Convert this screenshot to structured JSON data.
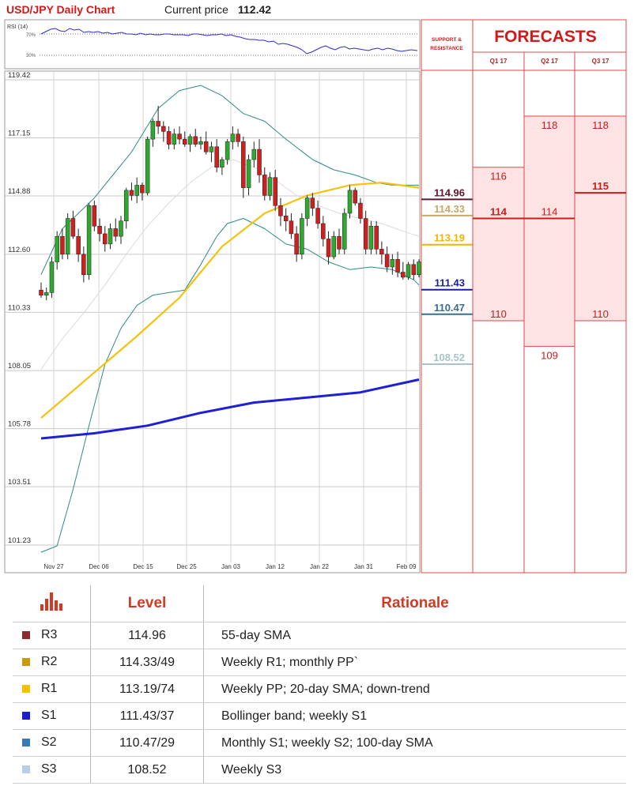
{
  "header": {
    "title": "USD/JPY Daily Chart",
    "current_price_label": "Current price",
    "current_price_value": "112.42"
  },
  "rsi": {
    "label": "RSI (14)",
    "upper": "70%",
    "lower": "30%"
  },
  "chart_data": {
    "type": "candlestick",
    "title": "USD/JPY Daily Chart",
    "y_ticks": [
      "119.42",
      "117.15",
      "114.88",
      "112.60",
      "110.33",
      "108.05",
      "105.78",
      "103.51",
      "101.23"
    ],
    "ylim": [
      100.5,
      120.3
    ],
    "x_ticks": [
      "Nov 27",
      "Dec 06",
      "Dec 15",
      "Dec 25",
      "Jan 03",
      "Jan 12",
      "Jan 22",
      "Jan 31",
      "Feb 09"
    ],
    "grid": true,
    "candles": [
      {
        "o": 111.2,
        "h": 111.5,
        "l": 110.9,
        "c": 111.0
      },
      {
        "o": 111.0,
        "h": 111.3,
        "l": 110.8,
        "c": 111.1
      },
      {
        "o": 111.1,
        "h": 112.5,
        "l": 110.9,
        "c": 112.3
      },
      {
        "o": 112.3,
        "h": 113.5,
        "l": 112.0,
        "c": 113.3
      },
      {
        "o": 113.3,
        "h": 113.6,
        "l": 112.4,
        "c": 112.6
      },
      {
        "o": 112.6,
        "h": 114.2,
        "l": 112.4,
        "c": 114.0
      },
      {
        "o": 114.0,
        "h": 114.3,
        "l": 113.2,
        "c": 113.3
      },
      {
        "o": 113.3,
        "h": 113.6,
        "l": 112.3,
        "c": 112.6
      },
      {
        "o": 112.6,
        "h": 112.9,
        "l": 111.5,
        "c": 111.8
      },
      {
        "o": 111.8,
        "h": 114.6,
        "l": 111.6,
        "c": 114.5
      },
      {
        "o": 114.5,
        "h": 114.7,
        "l": 113.5,
        "c": 113.7
      },
      {
        "o": 113.7,
        "h": 114.0,
        "l": 113.1,
        "c": 113.4
      },
      {
        "o": 113.4,
        "h": 113.7,
        "l": 112.7,
        "c": 113.0
      },
      {
        "o": 113.0,
        "h": 113.8,
        "l": 112.8,
        "c": 113.6
      },
      {
        "o": 113.6,
        "h": 114.0,
        "l": 113.1,
        "c": 113.3
      },
      {
        "o": 113.3,
        "h": 114.1,
        "l": 113.0,
        "c": 113.9
      },
      {
        "o": 113.9,
        "h": 115.2,
        "l": 113.6,
        "c": 115.1
      },
      {
        "o": 115.1,
        "h": 115.4,
        "l": 114.7,
        "c": 114.9
      },
      {
        "o": 114.9,
        "h": 115.6,
        "l": 114.6,
        "c": 115.3
      },
      {
        "o": 115.3,
        "h": 115.4,
        "l": 114.7,
        "c": 115.0
      },
      {
        "o": 115.0,
        "h": 117.2,
        "l": 114.9,
        "c": 117.1
      },
      {
        "o": 117.1,
        "h": 117.9,
        "l": 116.8,
        "c": 117.8
      },
      {
        "o": 117.8,
        "h": 118.4,
        "l": 117.3,
        "c": 117.6
      },
      {
        "o": 117.6,
        "h": 117.8,
        "l": 117.0,
        "c": 117.4
      },
      {
        "o": 117.4,
        "h": 117.6,
        "l": 116.7,
        "c": 116.9
      },
      {
        "o": 116.9,
        "h": 117.5,
        "l": 116.7,
        "c": 117.3
      },
      {
        "o": 117.3,
        "h": 117.6,
        "l": 116.9,
        "c": 117.1
      },
      {
        "o": 117.1,
        "h": 117.4,
        "l": 116.8,
        "c": 116.9
      },
      {
        "o": 116.9,
        "h": 117.3,
        "l": 116.6,
        "c": 117.2
      },
      {
        "o": 117.2,
        "h": 117.5,
        "l": 116.8,
        "c": 116.9
      },
      {
        "o": 116.9,
        "h": 117.2,
        "l": 116.7,
        "c": 117.0
      },
      {
        "o": 117.0,
        "h": 117.4,
        "l": 116.5,
        "c": 116.6
      },
      {
        "o": 116.6,
        "h": 117.0,
        "l": 116.2,
        "c": 116.8
      },
      {
        "o": 116.8,
        "h": 117.1,
        "l": 115.8,
        "c": 116.0
      },
      {
        "o": 116.0,
        "h": 116.4,
        "l": 115.7,
        "c": 116.3
      },
      {
        "o": 116.3,
        "h": 117.1,
        "l": 116.1,
        "c": 117.0
      },
      {
        "o": 117.0,
        "h": 117.6,
        "l": 116.7,
        "c": 117.3
      },
      {
        "o": 117.3,
        "h": 117.5,
        "l": 116.8,
        "c": 117.0
      },
      {
        "o": 117.0,
        "h": 117.2,
        "l": 114.8,
        "c": 115.2
      },
      {
        "o": 115.2,
        "h": 116.5,
        "l": 114.9,
        "c": 116.3
      },
      {
        "o": 116.3,
        "h": 117.0,
        "l": 116.0,
        "c": 116.7
      },
      {
        "o": 116.7,
        "h": 117.1,
        "l": 115.4,
        "c": 115.7
      },
      {
        "o": 115.7,
        "h": 116.0,
        "l": 114.7,
        "c": 114.9
      },
      {
        "o": 114.9,
        "h": 115.8,
        "l": 114.7,
        "c": 115.6
      },
      {
        "o": 115.6,
        "h": 115.9,
        "l": 114.3,
        "c": 114.5
      },
      {
        "o": 114.5,
        "h": 114.8,
        "l": 113.7,
        "c": 114.1
      },
      {
        "o": 114.1,
        "h": 114.4,
        "l": 113.5,
        "c": 113.9
      },
      {
        "o": 113.9,
        "h": 114.2,
        "l": 113.2,
        "c": 113.4
      },
      {
        "o": 113.4,
        "h": 113.7,
        "l": 112.3,
        "c": 112.6
      },
      {
        "o": 112.6,
        "h": 114.2,
        "l": 112.4,
        "c": 114.0
      },
      {
        "o": 114.0,
        "h": 114.9,
        "l": 113.7,
        "c": 114.8
      },
      {
        "o": 114.8,
        "h": 115.0,
        "l": 114.1,
        "c": 114.4
      },
      {
        "o": 114.4,
        "h": 114.7,
        "l": 113.6,
        "c": 113.8
      },
      {
        "o": 113.8,
        "h": 114.1,
        "l": 112.9,
        "c": 113.2
      },
      {
        "o": 113.2,
        "h": 113.5,
        "l": 112.2,
        "c": 112.5
      },
      {
        "o": 112.5,
        "h": 113.5,
        "l": 112.4,
        "c": 113.3
      },
      {
        "o": 113.3,
        "h": 113.6,
        "l": 112.6,
        "c": 112.8
      },
      {
        "o": 112.8,
        "h": 114.4,
        "l": 112.6,
        "c": 114.2
      },
      {
        "o": 114.2,
        "h": 115.3,
        "l": 114.0,
        "c": 115.1
      },
      {
        "o": 115.1,
        "h": 115.2,
        "l": 114.5,
        "c": 114.6
      },
      {
        "o": 114.6,
        "h": 114.8,
        "l": 113.8,
        "c": 114.0
      },
      {
        "o": 114.0,
        "h": 114.3,
        "l": 112.6,
        "c": 112.8
      },
      {
        "o": 112.8,
        "h": 113.9,
        "l": 112.6,
        "c": 113.7
      },
      {
        "o": 113.7,
        "h": 113.9,
        "l": 112.6,
        "c": 112.8
      },
      {
        "o": 112.8,
        "h": 113.1,
        "l": 112.2,
        "c": 112.6
      },
      {
        "o": 112.6,
        "h": 112.9,
        "l": 111.9,
        "c": 112.1
      },
      {
        "o": 112.1,
        "h": 112.6,
        "l": 111.8,
        "c": 112.4
      },
      {
        "o": 112.4,
        "h": 112.7,
        "l": 111.7,
        "c": 111.9
      },
      {
        "o": 111.9,
        "h": 112.3,
        "l": 111.6,
        "c": 111.7
      },
      {
        "o": 111.7,
        "h": 112.3,
        "l": 111.6,
        "c": 112.2
      },
      {
        "o": 112.2,
        "h": 112.4,
        "l": 111.6,
        "c": 111.8
      },
      {
        "o": 111.8,
        "h": 112.4,
        "l": 111.7,
        "c": 112.3
      }
    ],
    "sma20": [
      [
        0,
        106.2
      ],
      [
        9,
        107.8
      ],
      [
        18,
        109.4
      ],
      [
        26,
        110.9
      ],
      [
        34,
        112.9
      ],
      [
        42,
        114.2
      ],
      [
        50,
        114.9
      ],
      [
        58,
        115.3
      ],
      [
        64,
        115.4
      ],
      [
        71,
        115.2
      ]
    ],
    "sma55": [
      [
        0,
        105.4
      ],
      [
        10,
        105.6
      ],
      [
        20,
        105.9
      ],
      [
        30,
        106.4
      ],
      [
        40,
        106.8
      ],
      [
        50,
        107.0
      ],
      [
        60,
        107.2
      ],
      [
        71,
        107.7
      ]
    ],
    "upper_band": [
      [
        0,
        111.8
      ],
      [
        4,
        113.6
      ],
      [
        10,
        114.8
      ],
      [
        17,
        116.6
      ],
      [
        22,
        118.3
      ],
      [
        26,
        119.0
      ],
      [
        30,
        119.2
      ],
      [
        34,
        118.8
      ],
      [
        38,
        118.1
      ],
      [
        42,
        117.8
      ],
      [
        46,
        117.1
      ],
      [
        51,
        116.3
      ],
      [
        55,
        115.9
      ],
      [
        59,
        115.7
      ],
      [
        63,
        115.4
      ],
      [
        66,
        115.3
      ],
      [
        71,
        115.3
      ]
    ],
    "lower_band": [
      [
        0,
        100.95
      ],
      [
        3,
        101.2
      ],
      [
        6,
        103.4
      ],
      [
        9,
        105.9
      ],
      [
        12,
        108.3
      ],
      [
        15,
        109.7
      ],
      [
        18,
        110.6
      ],
      [
        21,
        111.0
      ],
      [
        24,
        111.1
      ],
      [
        27,
        111.2
      ],
      [
        30,
        112.2
      ],
      [
        33,
        113.3
      ],
      [
        35,
        113.8
      ],
      [
        38,
        114.0
      ],
      [
        42,
        113.6
      ],
      [
        46,
        113.0
      ],
      [
        50,
        112.8
      ],
      [
        54,
        112.3
      ],
      [
        58,
        112.0
      ],
      [
        62,
        112.1
      ],
      [
        66,
        112.0
      ],
      [
        70,
        111.6
      ],
      [
        71,
        111.4
      ]
    ],
    "mid_band": [
      [
        0,
        108.1
      ],
      [
        4,
        109.3
      ],
      [
        8,
        110.3
      ],
      [
        12,
        111.4
      ],
      [
        16,
        112.6
      ],
      [
        20,
        113.7
      ],
      [
        24,
        114.6
      ],
      [
        28,
        115.4
      ],
      [
        32,
        116.0
      ],
      [
        36,
        116.3
      ],
      [
        40,
        116.0
      ],
      [
        44,
        115.5
      ],
      [
        48,
        114.9
      ],
      [
        52,
        114.5
      ],
      [
        56,
        114.2
      ],
      [
        60,
        114.0
      ],
      [
        64,
        113.8
      ],
      [
        68,
        113.5
      ],
      [
        71,
        113.3
      ]
    ]
  },
  "support_resistance": {
    "title_line1": "SUPPORT &",
    "title_line2": "RESISTANCE",
    "levels": [
      {
        "value": "114.96",
        "color": "#5a1830"
      },
      {
        "value": "114.33",
        "color": "#c8a86c"
      },
      {
        "value": "113.19",
        "color": "#f2b400"
      },
      {
        "value": "111.43",
        "color": "#1c1ca8"
      },
      {
        "value": "110.47",
        "color": "#3a6e8f"
      },
      {
        "value": "108.52",
        "color": "#a8c4c8"
      }
    ]
  },
  "forecasts": {
    "title": "FORECASTS",
    "columns": [
      {
        "label": "Q1 17",
        "high": "116",
        "mid": "114",
        "low": "110"
      },
      {
        "label": "Q2 17",
        "high": "118",
        "mid": "114",
        "low": "109"
      },
      {
        "label": "Q3 17",
        "high": "118",
        "mid": "115",
        "low": "110"
      }
    ]
  },
  "table": {
    "col_level": "Level",
    "col_rationale": "Rationale",
    "rows": [
      {
        "name": "R3",
        "level": "114.96",
        "rationale": "55-day SMA",
        "color": "#8c2a2f"
      },
      {
        "name": "R2",
        "level": "114.33/49",
        "rationale": "Weekly R1; monthly PP`",
        "color": "#c9990e"
      },
      {
        "name": "R1",
        "level": "113.19/74",
        "rationale": "Weekly PP; 20-day SMA; down-trend",
        "color": "#f2c200"
      },
      {
        "name": "S1",
        "level": "111.43/37",
        "rationale": "Bollinger band; weekly S1",
        "color": "#1d1ccf"
      },
      {
        "name": "S2",
        "level": "110.47/29",
        "rationale": "Monthly S1; weekly S2; 100-day SMA",
        "color": "#3b78b6"
      },
      {
        "name": "S3",
        "level": "108.52",
        "rationale": "Weekly S3",
        "color": "#b9cfe6"
      }
    ]
  }
}
